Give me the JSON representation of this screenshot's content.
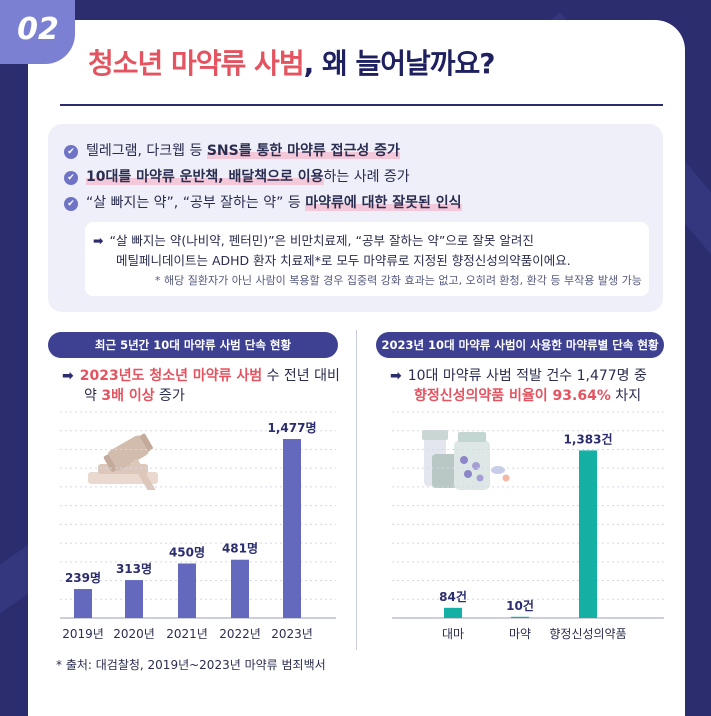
{
  "badge": "02",
  "title": {
    "highlight": "청소년 마약류 사범",
    "rest": ", 왜 늘어날까요?"
  },
  "bullets": [
    {
      "pre": "텔레그램, 다크웹 등 ",
      "mark": "SNS를 통한 마약류 접근성 증가",
      "post": ""
    },
    {
      "pre": "",
      "mark": "10대를 마약류 운반책, 배달책으로 이용",
      "post": "하는 사례 증가"
    },
    {
      "pre": "“살 빠지는 약”, “공부 잘하는 약” 등 ",
      "mark": "마약류에 대한 잘못된 인식",
      "post": ""
    }
  ],
  "note": {
    "line1": "“살 빠지는 약(나비약, 펜터민)”은 비만치료제, “공부 잘하는 약”으로 잘못 알려진",
    "line2": "메틸페니데이트는 ADHD 환자 치료제*로 모두 마약류로 지정된 향정신성의약품이에요.",
    "footnote": "* 해당 질환자가 아닌 사람이 복용할 경우 집중력 강화 효과는 없고, 오히려 환청, 환각 등 부작용 발생 가능"
  },
  "left_panel": {
    "pill": "최근 5년간 10대 마약류 사범 단속 현황",
    "line1_red": "2023년도 청소년 마약류 사범",
    "line1_rest": " 수 전년 대비",
    "line2_pre": "약 ",
    "line2_red": "3배 이상",
    "line2_post": " 증가"
  },
  "right_panel": {
    "pill": "2023년 10대 마약류 사범이 사용한 마약류별 단속 현황",
    "line1": "10대 마약류 사범 적발 건수 1,477명 중",
    "line2_red": "향정신성의약품 비율이 93.64%",
    "line2_post": " 차지"
  },
  "source": "* 출처: 대검찰청, 2019년~2023년 마약류 범죄백서",
  "colors": {
    "navy": "#2b2d6e",
    "accent_red": "#e45460",
    "bar_purple": "#6469bd",
    "bar_teal": "#14b0a4"
  },
  "chart_data": [
    {
      "type": "bar",
      "categories": [
        "2019년",
        "2020년",
        "2021년",
        "2022년",
        "2023년"
      ],
      "values": [
        239,
        313,
        450,
        481,
        1477
      ],
      "data_labels": [
        "239명",
        "313명",
        "450명",
        "481명",
        "1,477명"
      ],
      "unit": "명",
      "ylim": [
        0,
        1700
      ],
      "grid": true
    },
    {
      "type": "bar",
      "categories": [
        "대마",
        "마약",
        "향정신성의약품"
      ],
      "values": [
        84,
        10,
        1383
      ],
      "data_labels": [
        "84건",
        "10건",
        "1,383건"
      ],
      "unit": "건",
      "ylim": [
        0,
        1700
      ],
      "grid": true
    }
  ]
}
